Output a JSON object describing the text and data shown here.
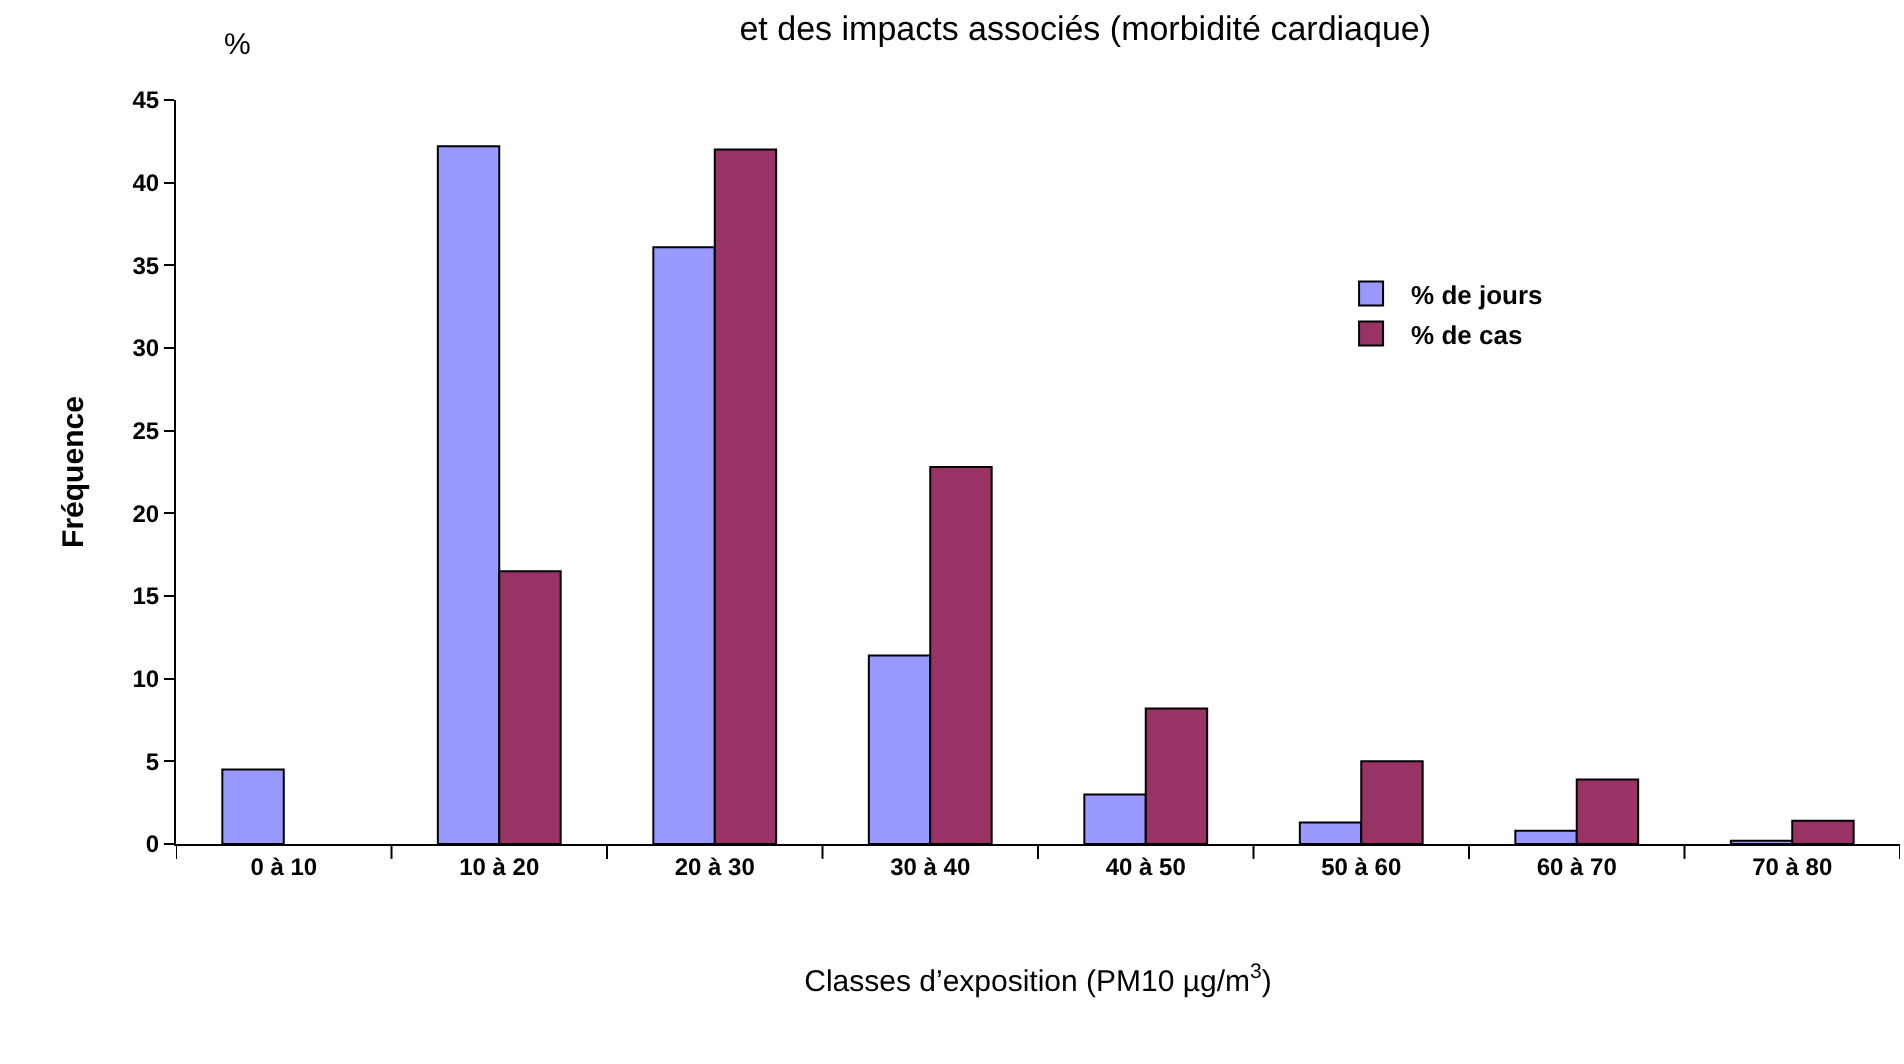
{
  "chart_data": {
    "type": "bar",
    "title": "et des impacts associés (morbidité cardiaque)",
    "xlabel": "Classes d’exposition (PM10 µg/m$^{3}$)",
    "ylabel": "Fréquence",
    "annotations": [
      "%"
    ],
    "categories": [
      "0 à 10",
      "10 à 20",
      "20 à 30",
      "30 à 40",
      "40 à 50",
      "50 à 60",
      "60 à 70",
      "70 à 80"
    ],
    "series": [
      {
        "name": "% de jours",
        "color": "#9999ff",
        "values": [
          4.5,
          42.2,
          36.1,
          11.4,
          3.0,
          1.3,
          0.8,
          0.2
        ]
      },
      {
        "name": "% de cas",
        "color": "#993366",
        "values": [
          null,
          16.5,
          42.0,
          22.8,
          8.2,
          5.0,
          3.9,
          1.4
        ]
      }
    ],
    "ylim": [
      0,
      45
    ],
    "yticks": [
      0,
      5,
      10,
      15,
      20,
      25,
      30,
      35,
      40,
      45
    ],
    "legend": "top right"
  }
}
